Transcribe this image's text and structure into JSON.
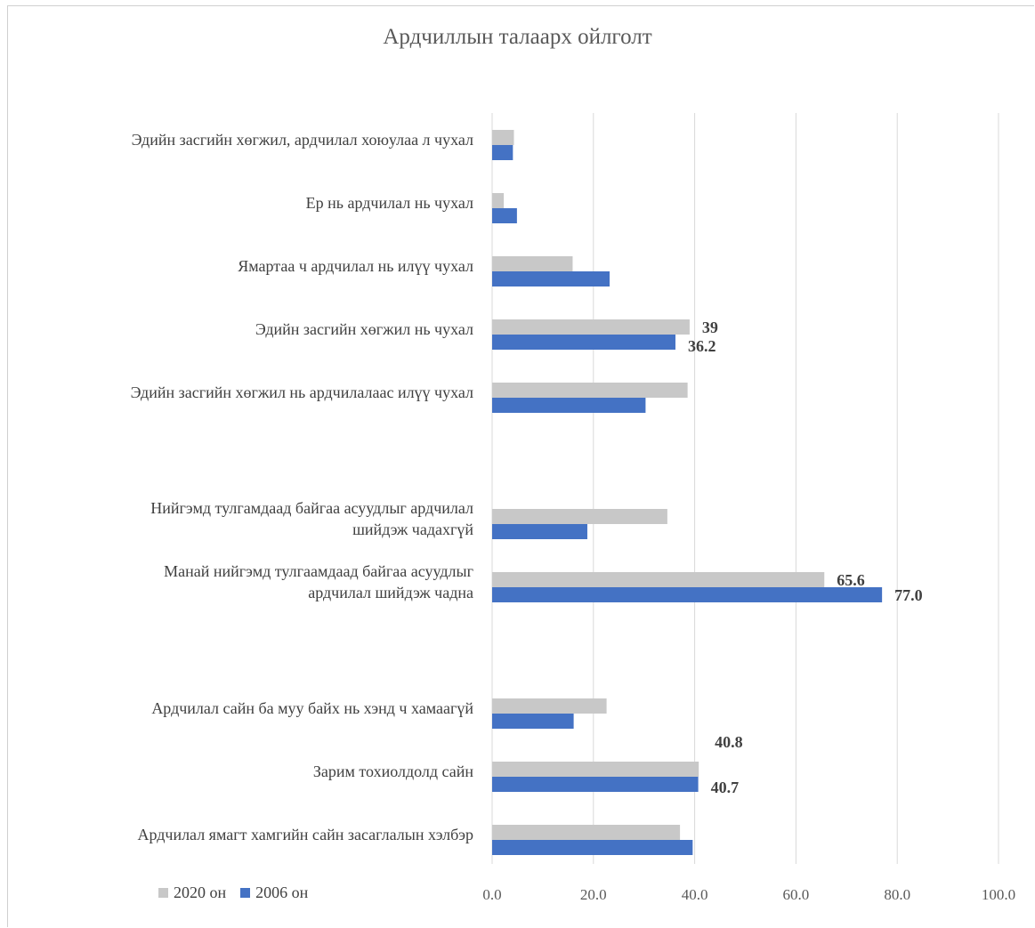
{
  "chart_data": {
    "type": "bar",
    "orientation": "horizontal",
    "title": "Ардчиллын талаарх ойлголт",
    "categories": [
      [
        "Эдийн засгийн хөгжил, ардчилал хоюулаа л чухал"
      ],
      [
        "Ер нь ардчилал нь чухал"
      ],
      [
        "Ямартаа ч ардчилал нь илүү чухал"
      ],
      [
        "Эдийн засгийн хөгжил нь чухал"
      ],
      [
        "Эдийн засгийн хөгжил нь ардчилалаас илүү чухал"
      ],
      [],
      [
        "Нийгэмд тулгамдаад байгаа асуудлыг ардчилал",
        "шийдэж чадахгүй"
      ],
      [
        "Манай нийгэмд тулгаамдаад байгаа асуудлыг",
        "ардчилал шийдэж чадна"
      ],
      [],
      [
        "Ардчилал сайн ба муу байх нь хэнд ч хамаагүй"
      ],
      [
        "Зарим тохиолдолд сайн"
      ],
      [
        "Ардчилал ямагт хамгийн сайн засаглалын хэлбэр"
      ]
    ],
    "series": [
      {
        "name": "2020 он",
        "color": "#c8c8c8",
        "values": [
          4.3,
          2.3,
          15.9,
          39,
          38.6,
          null,
          34.6,
          65.6,
          null,
          22.6,
          40.8,
          37.1
        ],
        "labels": [
          "",
          "",
          "",
          "39",
          "",
          "",
          "",
          "65.6",
          "",
          "",
          "40.8",
          ""
        ]
      },
      {
        "name": "2006 он",
        "color": "#4472c4",
        "values": [
          4.1,
          4.9,
          23.2,
          36.2,
          30.3,
          null,
          18.8,
          77.0,
          null,
          16.1,
          40.7,
          39.6
        ],
        "labels": [
          "",
          "",
          "",
          "36.2",
          "",
          "",
          "",
          "77.0",
          "",
          "",
          "40.7",
          ""
        ]
      }
    ],
    "xlim": [
      0,
      100
    ],
    "xticks": [
      "0.0",
      "20.0",
      "40.0",
      "60.0",
      "80.0",
      "100.0"
    ],
    "xtick_values": [
      0,
      20,
      40,
      60,
      80,
      100
    ],
    "grid": "vertical",
    "legend": "bottom-left"
  }
}
